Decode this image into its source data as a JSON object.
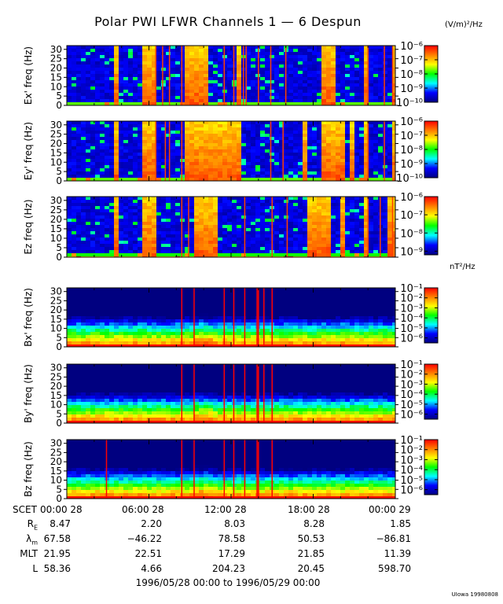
{
  "figure": {
    "title": "Polar PWI LFWR Channels 1 — 6 Despun",
    "units_electric": "(V/m)²/Hz",
    "units_magnetic": "nT²/Hz",
    "credit": "UIowa 19980808"
  },
  "colors": {
    "background": "#ffffff",
    "colormap": [
      "#000080",
      "#0000ff",
      "#00ffff",
      "#00ff00",
      "#ffff00",
      "#ff8000",
      "#ff0000"
    ]
  },
  "chart_data": [
    {
      "type": "heatmap",
      "channel": "Ex'",
      "ylabel": "Ex' freq (Hz)",
      "yticks": [
        0,
        5,
        10,
        15,
        20,
        25,
        30
      ],
      "ylim": [
        0,
        32
      ],
      "xlim": [
        0,
        24
      ],
      "colorbar": {
        "ticks": [
          "10⁻¹⁰",
          "10⁻⁹",
          "10⁻⁸",
          "10⁻⁷",
          "10⁻⁶"
        ],
        "range": [
          -10,
          -6
        ]
      },
      "intense_intervals_hours": [
        [
          3.3,
          3.6
        ],
        [
          5.4,
          5.9
        ],
        [
          6.1,
          6.3
        ],
        [
          8.5,
          10.0
        ],
        [
          12.4,
          12.6
        ],
        [
          18.6,
          19.6
        ],
        [
          21.5,
          21.8
        ],
        [
          23.5,
          24.0
        ]
      ],
      "spikes_hours": [
        6.5,
        7.0,
        7.5,
        8.4,
        11.5,
        12.2,
        12.9,
        13.1,
        14.0,
        14.9,
        16.0,
        22.0,
        23.2,
        23.8
      ]
    },
    {
      "type": "heatmap",
      "channel": "Ey'",
      "ylabel": "Ey' freq (Hz)",
      "yticks": [
        0,
        5,
        10,
        15,
        20,
        25,
        30
      ],
      "ylim": [
        0,
        32
      ],
      "xlim": [
        0,
        24
      ],
      "colorbar": {
        "ticks": [
          "10⁻¹⁰",
          "10⁻⁹",
          "10⁻⁸",
          "10⁻⁷",
          "10⁻⁶"
        ],
        "range": [
          -10,
          -6
        ]
      },
      "intense_intervals_hours": [
        [
          3.3,
          3.6
        ],
        [
          5.4,
          5.9
        ],
        [
          6.1,
          6.3
        ],
        [
          8.4,
          12.5
        ],
        [
          17.0,
          17.3
        ],
        [
          18.6,
          20.0
        ],
        [
          20.6,
          21.0
        ],
        [
          21.5,
          21.9
        ],
        [
          23.5,
          24.0
        ]
      ],
      "spikes_hours": [
        6.5,
        7.2,
        7.5,
        8.4,
        14.9,
        15.8,
        22.0,
        23.2
      ]
    },
    {
      "type": "heatmap",
      "channel": "Ez",
      "ylabel": "Ez freq (Hz)",
      "yticks": [
        0,
        5,
        10,
        15,
        20,
        25,
        30
      ],
      "ylim": [
        0,
        32
      ],
      "xlim": [
        0,
        24
      ],
      "colorbar": {
        "ticks": [
          "10⁻⁹",
          "10⁻⁸",
          "10⁻⁷",
          "10⁻⁶"
        ],
        "range": [
          -9.2,
          -6
        ]
      },
      "intense_intervals_hours": [
        [
          3.3,
          3.6
        ],
        [
          5.4,
          5.9
        ],
        [
          6.1,
          6.3
        ],
        [
          9.3,
          11.0
        ],
        [
          17.3,
          19.0
        ],
        [
          19.7,
          20.2
        ],
        [
          21.5,
          21.9
        ],
        [
          23.3,
          24.0
        ]
      ],
      "spikes_hours": [
        8.4,
        8.9,
        13.0,
        15.0,
        16.1,
        22.0,
        22.9,
        23.8
      ]
    },
    {
      "type": "heatmap",
      "channel": "Bx'",
      "ylabel": "Bx' freq (Hz)",
      "yticks": [
        0,
        5,
        10,
        15,
        20,
        25,
        30
      ],
      "ylim": [
        0,
        32
      ],
      "xlim": [
        0,
        24
      ],
      "colorbar": {
        "ticks": [
          "10⁻⁶",
          "10⁻⁵",
          "10⁻⁴",
          "10⁻³",
          "10⁻²",
          "10⁻¹"
        ],
        "range": [
          -6.5,
          -1
        ]
      },
      "intense_intervals_hours": [],
      "spikes_hours": [
        8.4,
        9.3,
        11.5,
        12.2,
        13.0,
        13.9,
        14.0,
        14.4,
        15.0
      ]
    },
    {
      "type": "heatmap",
      "channel": "By'",
      "ylabel": "By' freq (Hz)",
      "yticks": [
        0,
        5,
        10,
        15,
        20,
        25,
        30
      ],
      "ylim": [
        0,
        32
      ],
      "xlim": [
        0,
        24
      ],
      "colorbar": {
        "ticks": [
          "10⁻⁶",
          "10⁻⁵",
          "10⁻⁴",
          "10⁻³",
          "10⁻²",
          "10⁻¹"
        ],
        "range": [
          -6.5,
          -1
        ]
      },
      "intense_intervals_hours": [],
      "spikes_hours": [
        8.4,
        9.3,
        11.5,
        12.2,
        13.0,
        13.9,
        14.0,
        14.4,
        15.0
      ]
    },
    {
      "type": "heatmap",
      "channel": "Bz",
      "ylabel": "Bz freq (Hz)",
      "yticks": [
        0,
        5,
        10,
        15,
        20,
        25,
        30
      ],
      "ylim": [
        0,
        32
      ],
      "xlim": [
        0,
        24
      ],
      "colorbar": {
        "ticks": [
          "10⁻⁶",
          "10⁻⁵",
          "10⁻⁴",
          "10⁻³",
          "10⁻²",
          "10⁻¹"
        ],
        "range": [
          -6.5,
          -1
        ]
      },
      "intense_intervals_hours": [],
      "spikes_hours": [
        2.9,
        8.4,
        9.3,
        11.5,
        12.2,
        13.0,
        13.9,
        14.0,
        15.0
      ]
    }
  ],
  "time_axis": {
    "row_label": "SCET",
    "ticks": [
      "00:00 28",
      "06:00 28",
      "12:00 28",
      "18:00 28",
      "00:00 29"
    ]
  },
  "ephemeris": [
    {
      "label": "R",
      "sub": "E",
      "values": [
        "8.47",
        "2.20",
        "8.03",
        "8.28",
        "1.85"
      ]
    },
    {
      "label": "λ",
      "sub": "m",
      "values": [
        "67.58",
        "−46.22",
        "78.58",
        "50.53",
        "−86.81"
      ]
    },
    {
      "label": "MLT",
      "sub": "",
      "values": [
        "21.95",
        "22.51",
        "17.29",
        "21.85",
        "11.39"
      ]
    },
    {
      "label": "L",
      "sub": "",
      "values": [
        "58.36",
        "4.66",
        "204.23",
        "20.45",
        "598.70"
      ]
    }
  ],
  "date_range": "1996/05/28 00:00 to 1996/05/29 00:00"
}
